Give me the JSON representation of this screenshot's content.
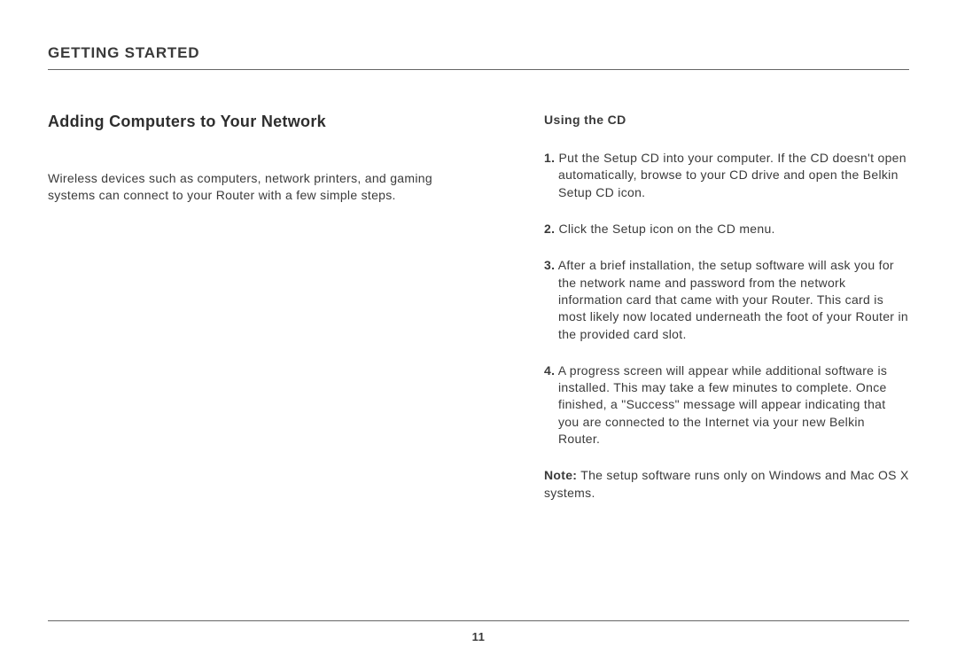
{
  "header": {
    "title": "GETTING STARTED"
  },
  "left": {
    "section_title": "Adding Computers to Your Network",
    "intro": "Wireless devices such as computers, network printers, and gaming systems can connect to your Router with a few simple steps."
  },
  "right": {
    "sub_title": "Using the CD",
    "steps": [
      {
        "num": "1.",
        "text": " Put the Setup CD into your computer. If the CD doesn't open automatically, browse to your CD drive and open the Belkin Setup CD icon."
      },
      {
        "num": "2.",
        "text": " Click the Setup icon on the CD menu."
      },
      {
        "num": "3.",
        "text": " After a brief installation, the setup software will ask you for the network name and password from the network information card that came with your Router. This card is most likely now located underneath the foot of your Router in the provided card slot."
      },
      {
        "num": "4.",
        "text": " A progress screen will appear while additional software is installed. This may take a few minutes to complete. Once finished, a \"Success\" message will appear indicating that you are connected to the Internet via your new Belkin Router."
      }
    ],
    "note_label": "Note:",
    "note_text": " The setup software runs only on Windows and Mac OS X systems."
  },
  "footer": {
    "page_number": "11"
  }
}
